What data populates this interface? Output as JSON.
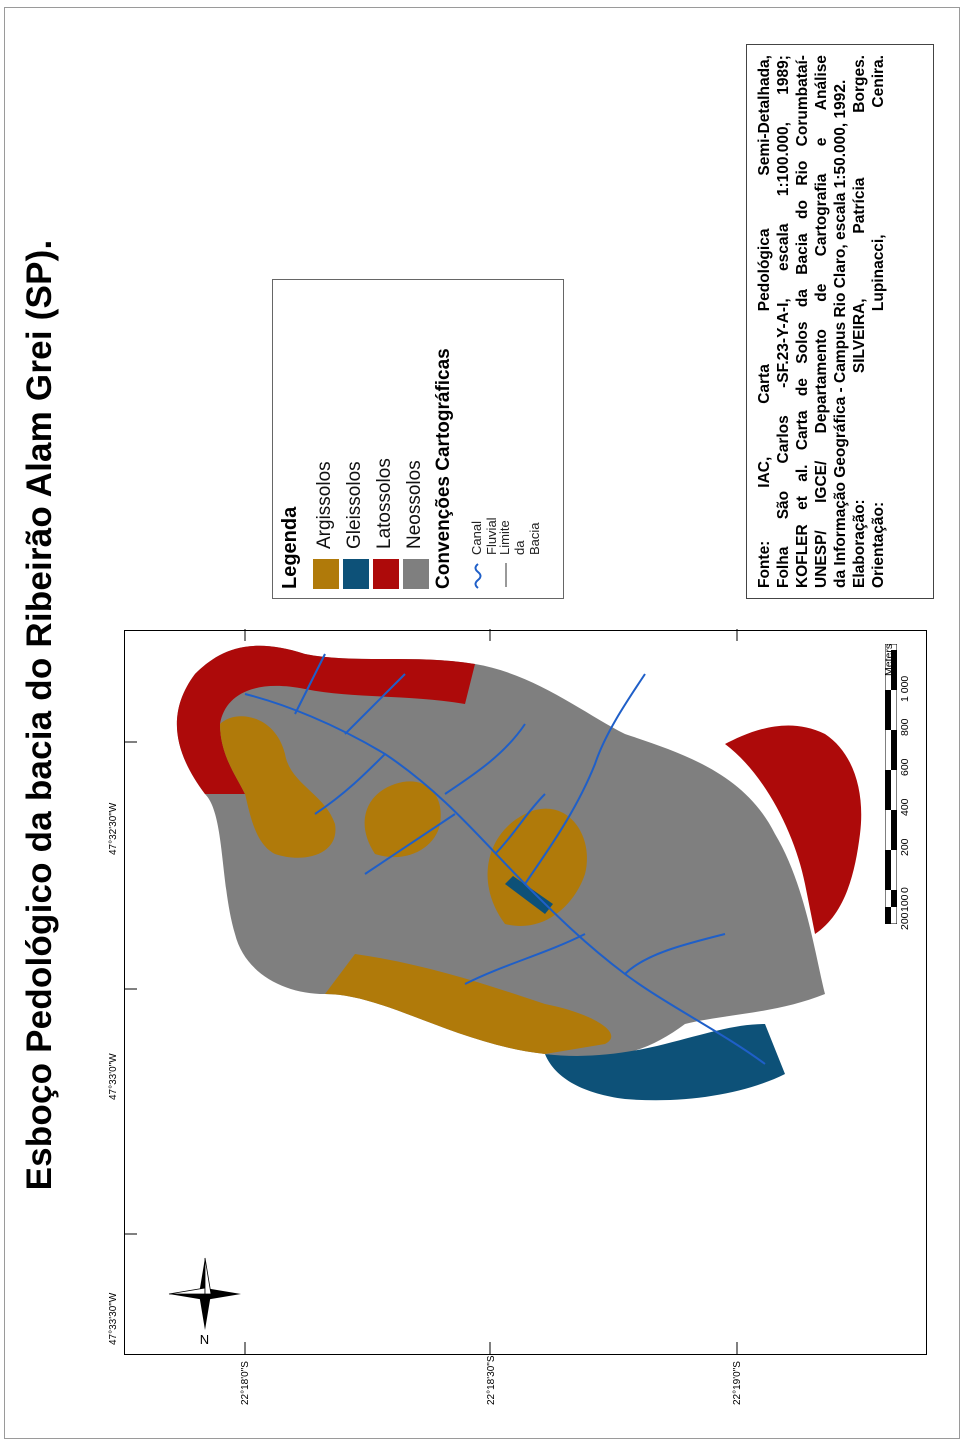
{
  "title": "Esboço Pedológico da bacia do Ribeirão Alam Grei (SP).",
  "colors": {
    "argissolos": "#b07a0a",
    "gleissolos": "#0d5178",
    "latossolos": "#ad0a0a",
    "neossolos": "#7f7f7f",
    "drainage": "#1f5fc8"
  },
  "legend": {
    "title": "Legenda",
    "items": [
      {
        "label": "Argissolos",
        "color": "#b07a0a"
      },
      {
        "label": "Gleissolos",
        "color": "#0d5178"
      },
      {
        "label": "Latossolos",
        "color": "#ad0a0a"
      },
      {
        "label": "Neossolos",
        "color": "#7f7f7f"
      }
    ],
    "conventions_title": "Convenções Cartográficas",
    "conventions": [
      {
        "label": "Canal Fluvial",
        "icon": "wavy-blue-line-icon"
      },
      {
        "label": "Limite da Bacia",
        "icon": "thin-line-icon"
      }
    ]
  },
  "coordinates": {
    "longitudes": [
      "47°33'30\"W",
      "47°33'0\"W",
      "47°32'30\"W"
    ],
    "latitudes": [
      "22°18'0\"S",
      "22°18'30\"S",
      "22°19'0\"S"
    ]
  },
  "north_arrow": {
    "label": "N"
  },
  "scale_bar": {
    "labels": [
      "200",
      "100",
      "0",
      "200",
      "400",
      "600",
      "800",
      "1 000"
    ],
    "unit": "Meters"
  },
  "source": {
    "lines": [
      [
        "Fonte:",
        "IAC,",
        "Carta",
        "Pedológica",
        "Semi-Detalhada,"
      ],
      [
        "Folha",
        "São",
        "Carlos",
        "-SF.23-Y-A-I,",
        "escala",
        "1:100.000,",
        "1989;"
      ],
      [
        "KOFLER",
        "et",
        "al.",
        "Carta",
        "de",
        "Solos",
        "da",
        "Bacia",
        "do",
        "Rio",
        "Corumbataí-"
      ],
      [
        "UNESP/",
        "IGCE/",
        "Departamento",
        "de",
        "Cartografia",
        "e",
        "Análise"
      ],
      [
        "da Informação Geográfica - Campus Rio Claro, escala 1:50.000, 1992."
      ],
      [
        "Elaboração:",
        "SILVEIRA,",
        "Patrícia",
        "Borges."
      ],
      [
        "Orientação:",
        "Lupinacci,",
        "Cenira."
      ]
    ]
  }
}
